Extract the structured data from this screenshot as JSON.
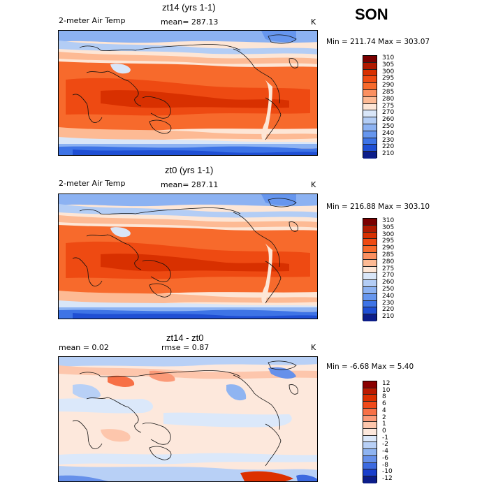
{
  "season": "SON",
  "chart_data": [
    {
      "type": "heatmap",
      "title": "zt14 (yrs 1-1)",
      "field_label": "2-meter Air Temp",
      "stat_text": "mean= 287.13",
      "units": "K",
      "minmax_text": "Min = 211.74 Max = 303.07",
      "min": 211.74,
      "max": 303.07,
      "mean": 287.13,
      "colorbar_levels": [
        "310",
        "305",
        "300",
        "295",
        "290",
        "285",
        "280",
        "275",
        "270",
        "260",
        "250",
        "240",
        "230",
        "220",
        "210"
      ],
      "colorbar_colors": [
        "#7a0000",
        "#b01a00",
        "#d83000",
        "#ee4a12",
        "#f76a2c",
        "#fb9060",
        "#fdba94",
        "#fde6d6",
        "#d9e6f8",
        "#b3cdf5",
        "#8cb2f2",
        "#6696ee",
        "#3e74e6",
        "#1f4fd4",
        "#0c1d8a"
      ]
    },
    {
      "type": "heatmap",
      "title": "zt0 (yrs 1-1)",
      "field_label": "2-meter Air Temp",
      "stat_text": "mean= 287.11",
      "units": "K",
      "minmax_text": "Min = 216.88 Max = 303.10",
      "min": 216.88,
      "max": 303.1,
      "mean": 287.11,
      "colorbar_levels": [
        "310",
        "305",
        "300",
        "295",
        "290",
        "285",
        "280",
        "275",
        "270",
        "260",
        "250",
        "240",
        "230",
        "220",
        "210"
      ],
      "colorbar_colors": [
        "#7a0000",
        "#b01a00",
        "#d83000",
        "#ee4a12",
        "#f76a2c",
        "#fb9060",
        "#fdba94",
        "#fde6d6",
        "#d9e6f8",
        "#b3cdf5",
        "#8cb2f2",
        "#6696ee",
        "#3e74e6",
        "#1f4fd4",
        "#0c1d8a"
      ]
    },
    {
      "type": "heatmap",
      "title": "zt14 - zt0",
      "stat_text": "mean =   0.02",
      "stat2_text": "rmse =   0.87",
      "units": "K",
      "minmax_text": "Min = -6.68 Max =  5.40",
      "min": -6.68,
      "max": 5.4,
      "mean": 0.02,
      "rmse": 0.87,
      "colorbar_levels": [
        "12",
        "10",
        "8",
        "6",
        "4",
        "2",
        "1",
        "0",
        "-1",
        "-2",
        "-4",
        "-6",
        "-8",
        "-10",
        "-12"
      ],
      "colorbar_colors": [
        "#8a0000",
        "#bb1a00",
        "#dc3000",
        "#f04a1a",
        "#f77046",
        "#fb9a78",
        "#fdc6ac",
        "#fde8dc",
        "#dbe8fa",
        "#b8d0f6",
        "#8fb4f1",
        "#6690ea",
        "#3c6ae0",
        "#1a3fcc",
        "#0c1d8a"
      ]
    }
  ]
}
